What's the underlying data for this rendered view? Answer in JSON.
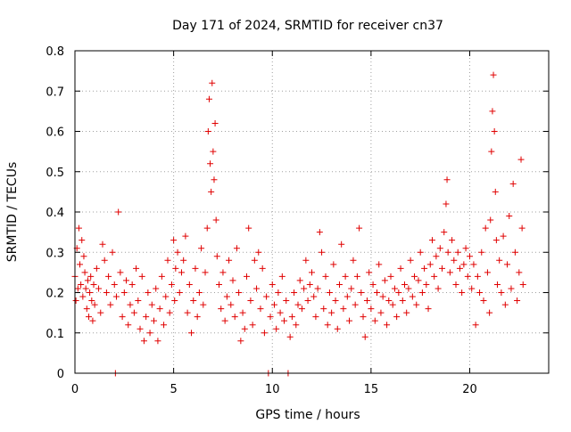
{
  "chart_data": {
    "type": "scatter",
    "title": "Day 171 of 2024, SRMTID for receiver cn37",
    "xlabel": "GPS time / hours",
    "ylabel": "SRMTID / TECUs",
    "xlim": [
      0,
      24
    ],
    "ylim": [
      0,
      0.8
    ],
    "x_ticks": [
      0,
      5,
      10,
      15,
      20
    ],
    "x_tick_labels": [
      "0",
      "5",
      "10",
      "15",
      "20"
    ],
    "y_ticks": [
      0,
      0.1,
      0.2,
      0.3,
      0.4,
      0.5,
      0.6,
      0.7,
      0.8
    ],
    "y_tick_labels": [
      "0",
      "0.1",
      "0.2",
      "0.3",
      "0.4",
      "0.5",
      "0.6",
      "0.7",
      "0.8"
    ],
    "grid": true,
    "marker": "plus",
    "marker_color": "#e00000",
    "series": [
      {
        "name": "SRMTID",
        "points": [
          [
            0.0,
            0.24
          ],
          [
            0.05,
            0.18
          ],
          [
            0.1,
            0.31
          ],
          [
            0.15,
            0.21
          ],
          [
            0.2,
            0.36
          ],
          [
            0.25,
            0.27
          ],
          [
            0.3,
            0.22
          ],
          [
            0.35,
            0.33
          ],
          [
            0.4,
            0.19
          ],
          [
            0.45,
            0.29
          ],
          [
            0.5,
            0.25
          ],
          [
            0.55,
            0.21
          ],
          [
            0.6,
            0.16
          ],
          [
            0.65,
            0.23
          ],
          [
            0.7,
            0.14
          ],
          [
            0.75,
            0.2
          ],
          [
            0.8,
            0.24
          ],
          [
            0.85,
            0.18
          ],
          [
            0.9,
            0.13
          ],
          [
            0.95,
            0.22
          ],
          [
            1.0,
            0.17
          ],
          [
            1.1,
            0.26
          ],
          [
            1.2,
            0.21
          ],
          [
            1.3,
            0.15
          ],
          [
            1.4,
            0.32
          ],
          [
            1.5,
            0.28
          ],
          [
            1.6,
            0.2
          ],
          [
            1.7,
            0.24
          ],
          [
            1.8,
            0.17
          ],
          [
            1.9,
            0.3
          ],
          [
            2.0,
            0.22
          ],
          [
            2.05,
            0.0
          ],
          [
            2.1,
            0.19
          ],
          [
            2.2,
            0.4
          ],
          [
            2.3,
            0.25
          ],
          [
            2.4,
            0.14
          ],
          [
            2.5,
            0.2
          ],
          [
            2.6,
            0.23
          ],
          [
            2.7,
            0.12
          ],
          [
            2.8,
            0.17
          ],
          [
            2.9,
            0.22
          ],
          [
            3.0,
            0.15
          ],
          [
            3.1,
            0.26
          ],
          [
            3.2,
            0.18
          ],
          [
            3.3,
            0.11
          ],
          [
            3.4,
            0.24
          ],
          [
            3.5,
            0.08
          ],
          [
            3.6,
            0.14
          ],
          [
            3.7,
            0.2
          ],
          [
            3.8,
            0.1
          ],
          [
            3.9,
            0.17
          ],
          [
            4.0,
            0.13
          ],
          [
            4.1,
            0.21
          ],
          [
            4.2,
            0.08
          ],
          [
            4.3,
            0.16
          ],
          [
            4.4,
            0.24
          ],
          [
            4.5,
            0.12
          ],
          [
            4.6,
            0.19
          ],
          [
            4.7,
            0.28
          ],
          [
            4.8,
            0.15
          ],
          [
            4.9,
            0.22
          ],
          [
            5.0,
            0.33
          ],
          [
            5.05,
            0.18
          ],
          [
            5.1,
            0.26
          ],
          [
            5.2,
            0.3
          ],
          [
            5.3,
            0.2
          ],
          [
            5.4,
            0.25
          ],
          [
            5.5,
            0.28
          ],
          [
            5.6,
            0.34
          ],
          [
            5.7,
            0.15
          ],
          [
            5.8,
            0.22
          ],
          [
            5.9,
            0.1
          ],
          [
            6.0,
            0.18
          ],
          [
            6.1,
            0.26
          ],
          [
            6.2,
            0.14
          ],
          [
            6.3,
            0.2
          ],
          [
            6.4,
            0.31
          ],
          [
            6.5,
            0.17
          ],
          [
            6.6,
            0.25
          ],
          [
            6.7,
            0.36
          ],
          [
            6.75,
            0.6
          ],
          [
            6.8,
            0.68
          ],
          [
            6.85,
            0.52
          ],
          [
            6.9,
            0.45
          ],
          [
            6.95,
            0.72
          ],
          [
            7.0,
            0.55
          ],
          [
            7.05,
            0.48
          ],
          [
            7.1,
            0.62
          ],
          [
            7.15,
            0.38
          ],
          [
            7.2,
            0.29
          ],
          [
            7.3,
            0.22
          ],
          [
            7.4,
            0.16
          ],
          [
            7.5,
            0.25
          ],
          [
            7.6,
            0.13
          ],
          [
            7.7,
            0.19
          ],
          [
            7.8,
            0.28
          ],
          [
            7.9,
            0.17
          ],
          [
            8.0,
            0.23
          ],
          [
            8.1,
            0.14
          ],
          [
            8.2,
            0.31
          ],
          [
            8.3,
            0.2
          ],
          [
            8.4,
            0.08
          ],
          [
            8.5,
            0.15
          ],
          [
            8.6,
            0.11
          ],
          [
            8.7,
            0.24
          ],
          [
            8.8,
            0.36
          ],
          [
            8.9,
            0.18
          ],
          [
            9.0,
            0.12
          ],
          [
            9.1,
            0.28
          ],
          [
            9.2,
            0.21
          ],
          [
            9.3,
            0.3
          ],
          [
            9.4,
            0.16
          ],
          [
            9.5,
            0.26
          ],
          [
            9.6,
            0.1
          ],
          [
            9.7,
            0.19
          ],
          [
            9.8,
            0.0
          ],
          [
            9.9,
            0.14
          ],
          [
            10.0,
            0.22
          ],
          [
            10.1,
            0.17
          ],
          [
            10.2,
            0.11
          ],
          [
            10.3,
            0.2
          ],
          [
            10.4,
            0.15
          ],
          [
            10.5,
            0.24
          ],
          [
            10.6,
            0.13
          ],
          [
            10.7,
            0.18
          ],
          [
            10.8,
            0.0
          ],
          [
            10.9,
            0.09
          ],
          [
            11.0,
            0.14
          ],
          [
            11.1,
            0.2
          ],
          [
            11.2,
            0.12
          ],
          [
            11.3,
            0.17
          ],
          [
            11.4,
            0.23
          ],
          [
            11.5,
            0.16
          ],
          [
            11.6,
            0.21
          ],
          [
            11.7,
            0.28
          ],
          [
            11.8,
            0.18
          ],
          [
            11.9,
            0.22
          ],
          [
            12.0,
            0.25
          ],
          [
            12.1,
            0.19
          ],
          [
            12.2,
            0.14
          ],
          [
            12.3,
            0.21
          ],
          [
            12.4,
            0.35
          ],
          [
            12.5,
            0.3
          ],
          [
            12.6,
            0.16
          ],
          [
            12.7,
            0.24
          ],
          [
            12.8,
            0.12
          ],
          [
            12.9,
            0.2
          ],
          [
            13.0,
            0.15
          ],
          [
            13.1,
            0.27
          ],
          [
            13.2,
            0.18
          ],
          [
            13.3,
            0.11
          ],
          [
            13.4,
            0.22
          ],
          [
            13.5,
            0.32
          ],
          [
            13.6,
            0.16
          ],
          [
            13.7,
            0.24
          ],
          [
            13.8,
            0.19
          ],
          [
            13.9,
            0.13
          ],
          [
            14.0,
            0.21
          ],
          [
            14.1,
            0.28
          ],
          [
            14.2,
            0.17
          ],
          [
            14.3,
            0.24
          ],
          [
            14.4,
            0.36
          ],
          [
            14.5,
            0.2
          ],
          [
            14.6,
            0.14
          ],
          [
            14.7,
            0.09
          ],
          [
            14.8,
            0.18
          ],
          [
            14.9,
            0.25
          ],
          [
            15.0,
            0.16
          ],
          [
            15.1,
            0.22
          ],
          [
            15.2,
            0.13
          ],
          [
            15.3,
            0.2
          ],
          [
            15.4,
            0.27
          ],
          [
            15.5,
            0.15
          ],
          [
            15.6,
            0.19
          ],
          [
            15.7,
            0.23
          ],
          [
            15.8,
            0.12
          ],
          [
            15.9,
            0.18
          ],
          [
            16.0,
            0.24
          ],
          [
            16.1,
            0.17
          ],
          [
            16.2,
            0.21
          ],
          [
            16.3,
            0.14
          ],
          [
            16.4,
            0.2
          ],
          [
            16.5,
            0.26
          ],
          [
            16.6,
            0.18
          ],
          [
            16.7,
            0.22
          ],
          [
            16.8,
            0.15
          ],
          [
            16.9,
            0.21
          ],
          [
            17.0,
            0.28
          ],
          [
            17.1,
            0.19
          ],
          [
            17.2,
            0.24
          ],
          [
            17.3,
            0.17
          ],
          [
            17.4,
            0.23
          ],
          [
            17.5,
            0.3
          ],
          [
            17.6,
            0.2
          ],
          [
            17.7,
            0.26
          ],
          [
            17.8,
            0.22
          ],
          [
            17.9,
            0.16
          ],
          [
            18.0,
            0.27
          ],
          [
            18.1,
            0.33
          ],
          [
            18.2,
            0.24
          ],
          [
            18.3,
            0.29
          ],
          [
            18.4,
            0.21
          ],
          [
            18.5,
            0.31
          ],
          [
            18.6,
            0.26
          ],
          [
            18.7,
            0.35
          ],
          [
            18.8,
            0.42
          ],
          [
            18.85,
            0.48
          ],
          [
            18.9,
            0.3
          ],
          [
            19.0,
            0.25
          ],
          [
            19.1,
            0.33
          ],
          [
            19.2,
            0.28
          ],
          [
            19.3,
            0.22
          ],
          [
            19.4,
            0.3
          ],
          [
            19.5,
            0.26
          ],
          [
            19.6,
            0.2
          ],
          [
            19.7,
            0.27
          ],
          [
            19.8,
            0.31
          ],
          [
            19.9,
            0.24
          ],
          [
            20.0,
            0.29
          ],
          [
            20.1,
            0.21
          ],
          [
            20.2,
            0.27
          ],
          [
            20.3,
            0.12
          ],
          [
            20.4,
            0.24
          ],
          [
            20.5,
            0.2
          ],
          [
            20.6,
            0.3
          ],
          [
            20.7,
            0.18
          ],
          [
            20.8,
            0.36
          ],
          [
            20.9,
            0.25
          ],
          [
            21.0,
            0.15
          ],
          [
            21.05,
            0.38
          ],
          [
            21.1,
            0.55
          ],
          [
            21.15,
            0.65
          ],
          [
            21.2,
            0.74
          ],
          [
            21.25,
            0.6
          ],
          [
            21.3,
            0.45
          ],
          [
            21.35,
            0.33
          ],
          [
            21.4,
            0.22
          ],
          [
            21.5,
            0.28
          ],
          [
            21.6,
            0.2
          ],
          [
            21.7,
            0.34
          ],
          [
            21.8,
            0.17
          ],
          [
            21.9,
            0.27
          ],
          [
            22.0,
            0.39
          ],
          [
            22.1,
            0.21
          ],
          [
            22.2,
            0.47
          ],
          [
            22.3,
            0.3
          ],
          [
            22.4,
            0.18
          ],
          [
            22.5,
            0.25
          ],
          [
            22.6,
            0.53
          ],
          [
            22.65,
            0.36
          ],
          [
            22.7,
            0.22
          ]
        ]
      }
    ]
  }
}
